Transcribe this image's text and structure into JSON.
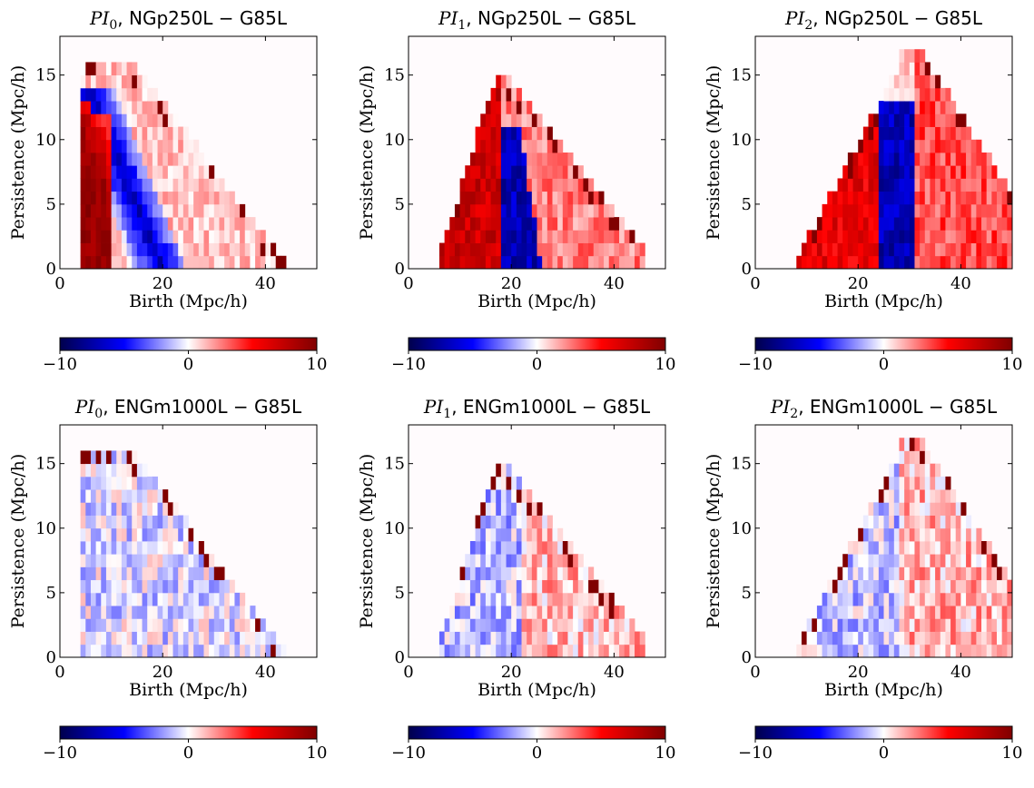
{
  "chart_data": [
    {
      "type": "heatmap",
      "title_sym": "PI",
      "title_sub": "0",
      "title_rest": ", NGp250L − G85L",
      "xlabel": "Birth (Mpc/h)",
      "ylabel": "Persistence (Mpc/h)",
      "xlim": [
        0,
        50
      ],
      "ylim": [
        0,
        18
      ],
      "xticks": [
        "0",
        "20",
        "40"
      ],
      "yticks": [
        "0",
        "5",
        "10",
        "15"
      ],
      "colorbar": {
        "range": [
          -10,
          10
        ],
        "ticks": [
          "−10",
          "0",
          "10"
        ],
        "colormap": "seismic"
      },
      "pattern": {
        "model": "pi0",
        "domain": "triangle (birth ≈ 4–44, persistence up to ≈ 16)",
        "features": [
          "strong positive band along left edge (birth ≈ 4–12)",
          "negative diagonal band from (6,13) to (22,0)",
          "weak positive values elsewhere"
        ]
      }
    },
    {
      "type": "heatmap",
      "title_sym": "PI",
      "title_sub": "1",
      "title_rest": ", NGp250L − G85L",
      "xlabel": "Birth (Mpc/h)",
      "ylabel": "Persistence (Mpc/h)",
      "xlim": [
        0,
        50
      ],
      "ylim": [
        0,
        18
      ],
      "xticks": [
        "0",
        "20",
        "40"
      ],
      "yticks": [
        "0",
        "5",
        "10",
        "15"
      ],
      "colorbar": {
        "range": [
          -10,
          10
        ],
        "ticks": [
          "−10",
          "0",
          "10"
        ],
        "colormap": "seismic"
      },
      "pattern": {
        "model": "pi1",
        "domain": "peaked triangle (apex birth ≈ 18, persistence ≈ 15)",
        "features": [
          "strong positive left of birth ≈ 18",
          "negative narrow band birth ≈ 18–26 at low persistence",
          "moderate positive on right side"
        ]
      }
    },
    {
      "type": "heatmap",
      "title_sym": "PI",
      "title_sub": "2",
      "title_rest": ", NGp250L − G85L",
      "xlabel": "Birth (Mpc/h)",
      "ylabel": "Persistence (Mpc/h)",
      "xlim": [
        0,
        50
      ],
      "ylim": [
        0,
        18
      ],
      "xticks": [
        "0",
        "20",
        "40"
      ],
      "yticks": [
        "0",
        "5",
        "10",
        "15"
      ],
      "colorbar": {
        "range": [
          -10,
          10
        ],
        "ticks": [
          "−10",
          "0",
          "10"
        ],
        "colormap": "seismic"
      },
      "pattern": {
        "model": "pi2",
        "domain": "peaked triangle (apex birth ≈ 30, persistence ≈ 17)",
        "features": [
          "strong positive left of birth ≈ 25",
          "negative vertical band birth ≈ 25–31",
          "positive region right of birth ≈ 32"
        ]
      }
    },
    {
      "type": "heatmap",
      "title_sym": "PI",
      "title_sub": "0",
      "title_rest": ", ENGm1000L − G85L",
      "xlabel": "Birth (Mpc/h)",
      "ylabel": "Persistence (Mpc/h)",
      "xlim": [
        0,
        50
      ],
      "ylim": [
        0,
        18
      ],
      "xticks": [
        "0",
        "20",
        "40"
      ],
      "yticks": [
        "0",
        "5",
        "10",
        "15"
      ],
      "colorbar": {
        "range": [
          -10,
          10
        ],
        "ticks": [
          "−10",
          "0",
          "10"
        ],
        "colormap": "seismic"
      },
      "pattern": {
        "model": "pi0",
        "domain": "triangle (birth ≈ 4–44, persistence up to ≈ 16)",
        "features": [
          "mostly near zero, weakly mixed",
          "sparse dark red cells along upper edge"
        ]
      }
    },
    {
      "type": "heatmap",
      "title_sym": "PI",
      "title_sub": "1",
      "title_rest": ", ENGm1000L − G85L",
      "xlabel": "Birth (Mpc/h)",
      "ylabel": "Persistence (Mpc/h)",
      "xlim": [
        0,
        50
      ],
      "ylim": [
        0,
        18
      ],
      "xticks": [
        "0",
        "20",
        "40"
      ],
      "yticks": [
        "0",
        "5",
        "10",
        "15"
      ],
      "colorbar": {
        "range": [
          -10,
          10
        ],
        "ticks": [
          "−10",
          "0",
          "10"
        ],
        "colormap": "seismic"
      },
      "pattern": {
        "model": "pi1",
        "domain": "peaked triangle (apex birth ≈ 18, persistence ≈ 15)",
        "features": [
          "weak negative left of birth ≈ 22",
          "weak positive on right",
          "dark red cells along upper-right edge"
        ]
      }
    },
    {
      "type": "heatmap",
      "title_sym": "PI",
      "title_sub": "2",
      "title_rest": ", ENGm1000L − G85L",
      "xlabel": "Birth (Mpc/h)",
      "ylabel": "Persistence (Mpc/h)",
      "xlim": [
        0,
        50
      ],
      "ylim": [
        0,
        18
      ],
      "xticks": [
        "0",
        "20",
        "40"
      ],
      "yticks": [
        "0",
        "5",
        "10",
        "15"
      ],
      "colorbar": {
        "range": [
          -10,
          10
        ],
        "ticks": [
          "−10",
          "0",
          "10"
        ],
        "colormap": "seismic"
      },
      "pattern": {
        "model": "pi2",
        "domain": "peaked triangle (apex birth ≈ 30, persistence ≈ 17)",
        "features": [
          "weak negative left of birth ≈ 28",
          "weak positive on right",
          "dark red cells along right edge"
        ]
      }
    }
  ]
}
